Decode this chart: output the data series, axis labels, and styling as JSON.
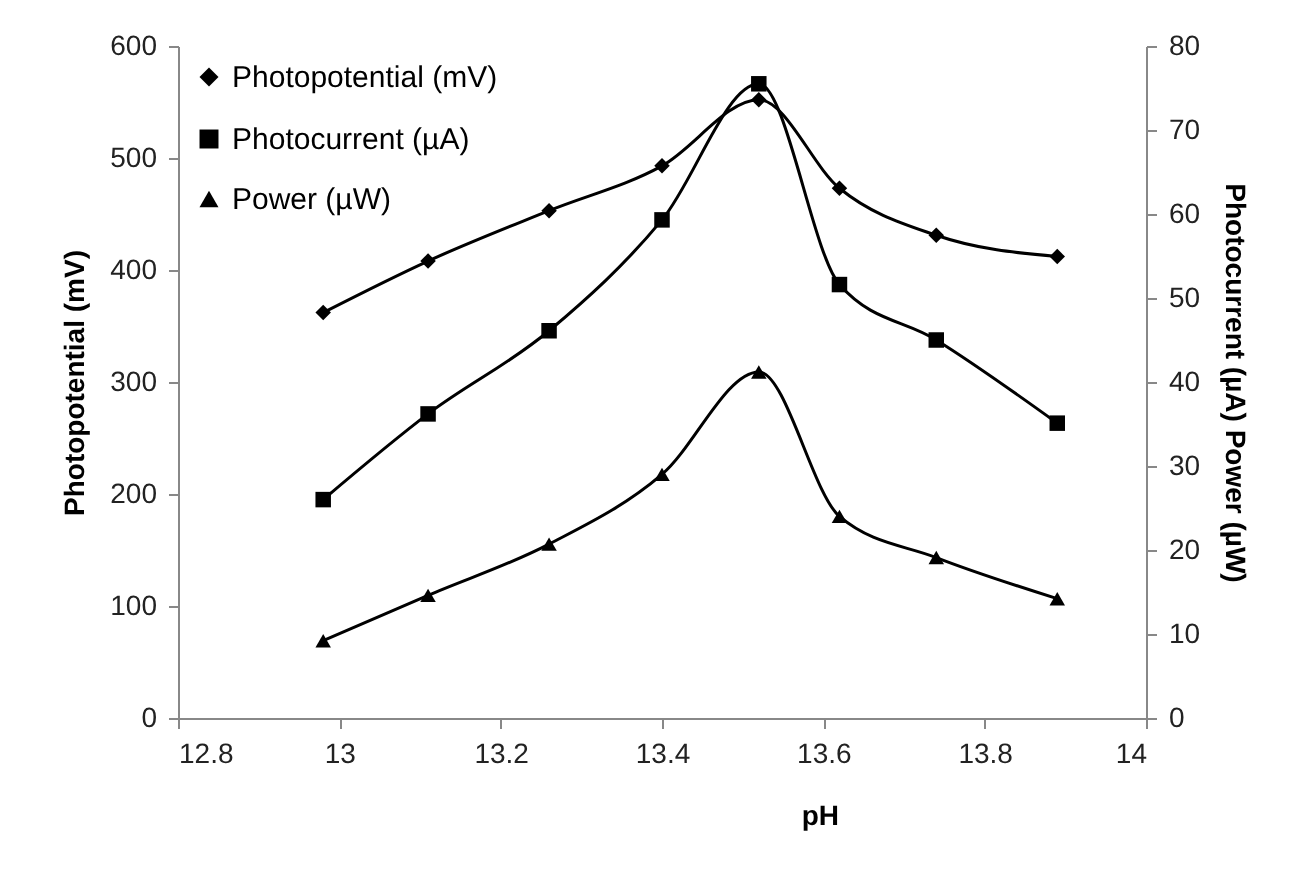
{
  "chart_data": {
    "type": "line",
    "xlabel": "pH",
    "ylabel": "Photopotential (mV)",
    "y2label": "Photocurrent (µA)   Power (µW)",
    "x": [
      12.98,
      13.11,
      13.26,
      13.4,
      13.52,
      13.62,
      13.74,
      13.89
    ],
    "series": [
      {
        "name": "Photopotential (mV)",
        "color": "#000000",
        "marker": "diamond",
        "values": [
          362,
          408,
          453,
          493,
          552,
          473,
          431,
          412
        ]
      },
      {
        "name": "Photocurrent (µA)",
        "color": "#000000",
        "marker": "square",
        "axis": "y2",
        "values": [
          26,
          36.2,
          46.1,
          59.3,
          75.5,
          51.6,
          45,
          35.1
        ]
      },
      {
        "name": "Power (µW)",
        "color": "#000000",
        "marker": "triangle",
        "axis": "y2",
        "values": [
          9.2,
          14.6,
          20.7,
          29,
          41.2,
          24,
          19.1,
          14.2
        ]
      }
    ],
    "xlim": [
      12.8,
      14
    ],
    "xticks": [
      12.8,
      13,
      13.2,
      13.4,
      13.6,
      13.8,
      14
    ],
    "ylim": [
      0,
      600
    ],
    "yticks": [
      0,
      100,
      200,
      300,
      400,
      500,
      600
    ],
    "y2lim": [
      0,
      80
    ],
    "y2ticks": [
      0,
      10,
      20,
      30,
      40,
      50,
      60,
      70,
      80
    ],
    "legend": "top left",
    "grid": false,
    "line_style": "solid"
  }
}
